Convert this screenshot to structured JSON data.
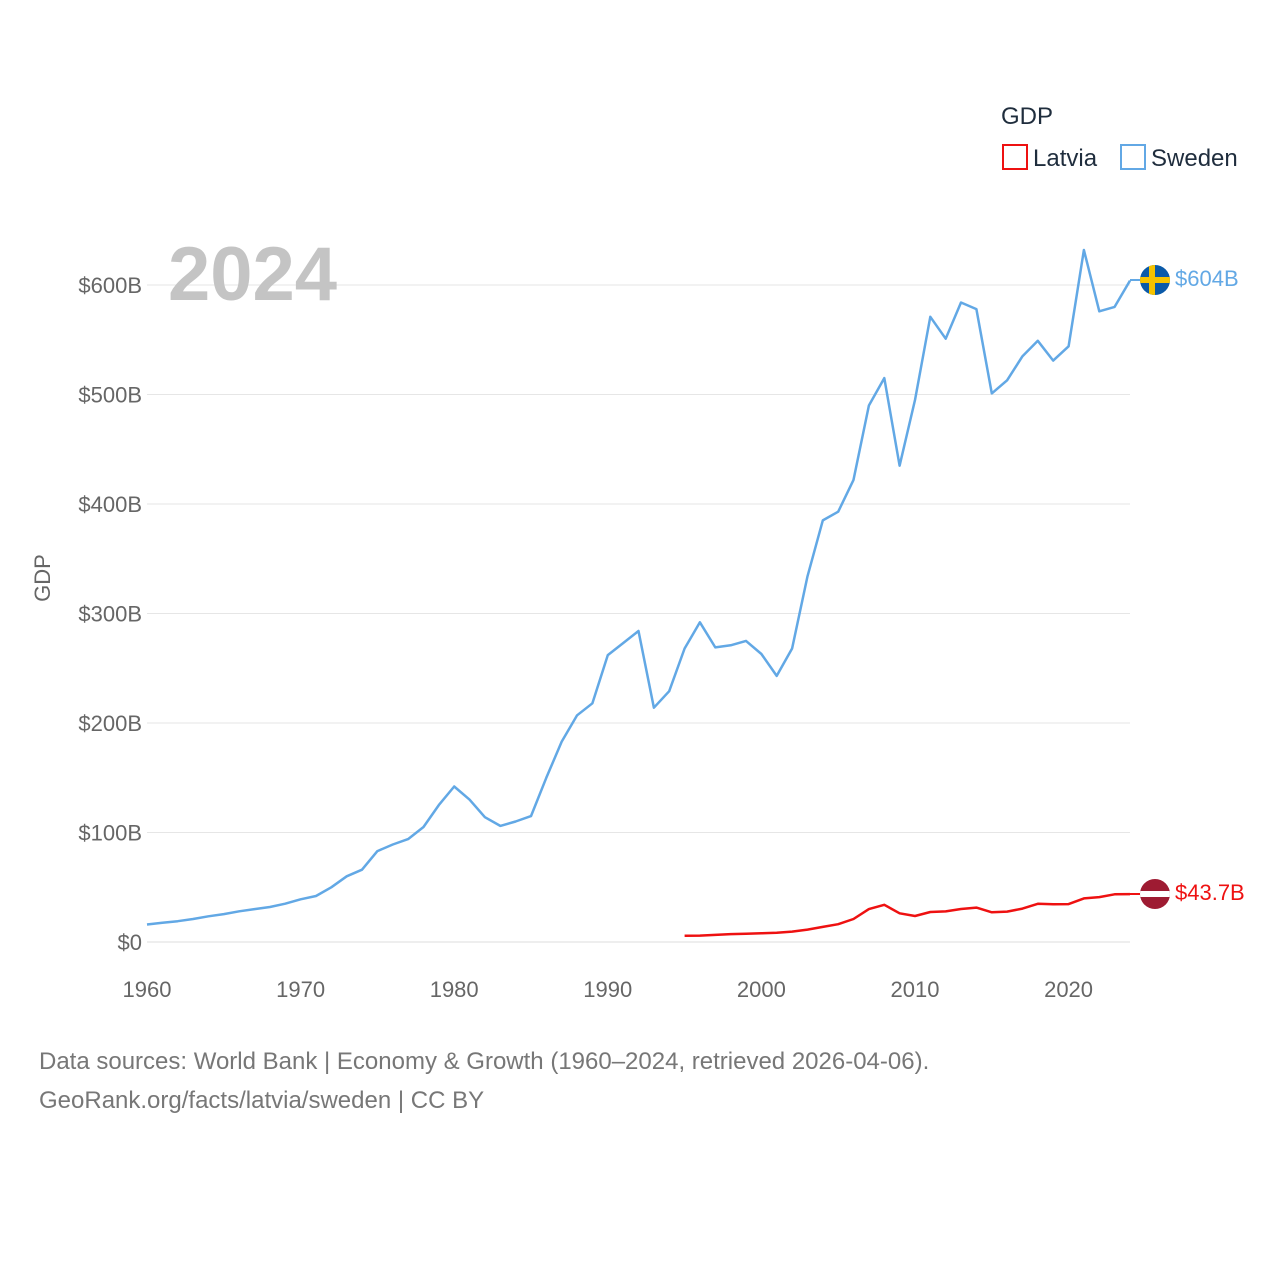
{
  "chart_data": {
    "type": "line",
    "title": "GDP",
    "year_label": "2024",
    "ylabel": "GDP",
    "xlabel": "",
    "xlim": [
      1960,
      2024
    ],
    "ylim": [
      0,
      600
    ],
    "x_ticks": [
      1960,
      1970,
      1980,
      1990,
      2000,
      2010,
      2020
    ],
    "y_ticks": [
      {
        "value": 0,
        "label": "$0"
      },
      {
        "value": 100,
        "label": "$100B"
      },
      {
        "value": 200,
        "label": "$200B"
      },
      {
        "value": 300,
        "label": "$300B"
      },
      {
        "value": 400,
        "label": "$400B"
      },
      {
        "value": 500,
        "label": "$500B"
      },
      {
        "value": 600,
        "label": "$600B"
      }
    ],
    "grid": true,
    "legend": {
      "title": "GDP",
      "position": "top-right"
    },
    "series": [
      {
        "name": "Latvia",
        "color": "#ee1111",
        "end_label": "$43.7B",
        "flag": "latvia-flag",
        "x": [
          1995,
          1996,
          1997,
          1998,
          1999,
          2000,
          2001,
          2002,
          2003,
          2004,
          2005,
          2006,
          2007,
          2008,
          2009,
          2010,
          2011,
          2012,
          2013,
          2014,
          2015,
          2016,
          2017,
          2018,
          2019,
          2020,
          2021,
          2022,
          2023,
          2024
        ],
        "values": [
          5.7,
          5.8,
          6.5,
          7.2,
          7.5,
          7.9,
          8.4,
          9.5,
          11.3,
          13.8,
          16.3,
          21.0,
          30.0,
          34.0,
          26.2,
          23.7,
          27.4,
          27.9,
          30.1,
          31.4,
          27.1,
          27.8,
          30.5,
          34.9,
          34.5,
          34.6,
          39.8,
          41.0,
          43.6,
          43.7
        ]
      },
      {
        "name": "Sweden",
        "color": "#62a8e5",
        "end_label": "$604B",
        "flag": "sweden-flag",
        "x": [
          1960,
          1961,
          1962,
          1963,
          1964,
          1965,
          1966,
          1967,
          1968,
          1969,
          1970,
          1971,
          1972,
          1973,
          1974,
          1975,
          1976,
          1977,
          1978,
          1979,
          1980,
          1981,
          1982,
          1983,
          1984,
          1985,
          1986,
          1987,
          1988,
          1989,
          1990,
          1991,
          1992,
          1993,
          1994,
          1995,
          1996,
          1997,
          1998,
          1999,
          2000,
          2001,
          2002,
          2003,
          2004,
          2005,
          2006,
          2007,
          2008,
          2009,
          2010,
          2011,
          2012,
          2013,
          2014,
          2015,
          2016,
          2017,
          2018,
          2019,
          2020,
          2021,
          2022,
          2023,
          2024
        ],
        "values": [
          16,
          17.5,
          19,
          21,
          23.5,
          25.5,
          28,
          30,
          32,
          35,
          39,
          42,
          50,
          60,
          66,
          83,
          89,
          94,
          105,
          125,
          142,
          130,
          114,
          106,
          110,
          115,
          150,
          183,
          207,
          218,
          262,
          273,
          284,
          214,
          229,
          268,
          292,
          269,
          271,
          275,
          263,
          243,
          268,
          334,
          385,
          393,
          422,
          490,
          515,
          435,
          495,
          571,
          551,
          584,
          578,
          501,
          513,
          535,
          549,
          531,
          544,
          632,
          576,
          580,
          604
        ]
      }
    ]
  },
  "footer": {
    "line1": "Data sources: World Bank | Economy & Growth (1960–2024, retrieved 2026-04-06).",
    "line2": "GeoRank.org/facts/latvia/sweden | CC BY"
  }
}
